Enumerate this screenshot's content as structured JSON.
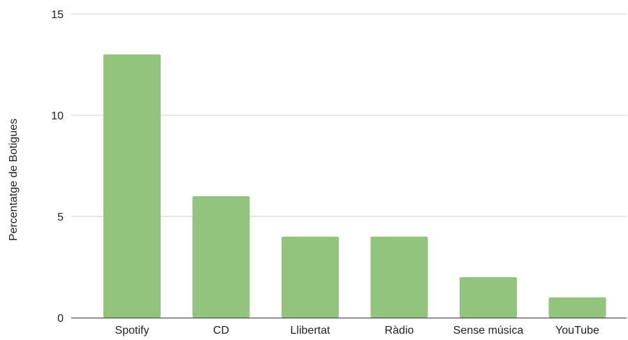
{
  "chart_data": {
    "type": "bar",
    "title": "",
    "xlabel": "",
    "ylabel": "Percentatge de Botigues",
    "categories": [
      "Spotify",
      "CD",
      "Llibertat",
      "Ràdio",
      "Sense música",
      "YouTube"
    ],
    "values": [
      13,
      6,
      4,
      4,
      2,
      1
    ],
    "ylim": [
      0,
      15
    ],
    "yticks": [
      0,
      5,
      10,
      15
    ],
    "grid": true,
    "legend": "none",
    "colors": {
      "bar": "#93c47d",
      "grid": "#cccccc",
      "axis": "#333333"
    }
  }
}
